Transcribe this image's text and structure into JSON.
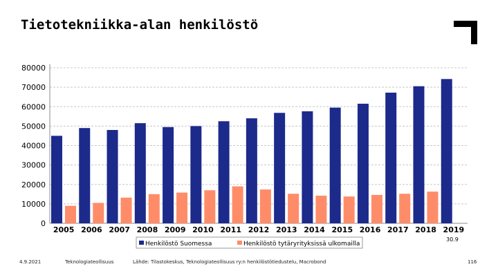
{
  "page": {
    "title": "Tietotekniikka-alan henkilöstö",
    "date": "4.9.2021",
    "organization": "Teknologiateollisuus",
    "source": "Lähde: Tilastokeskus, Teknologiateollisuus ry:n henkilöstötiedustelu, Macrobond",
    "page_number": "116",
    "chart_date_stamp": "30.9"
  },
  "colors": {
    "series_domestic": "#1c2a8c",
    "series_foreign": "#ff8c69",
    "grid": "#c8c8c8",
    "logo": "#000000"
  },
  "chart_data": {
    "type": "bar",
    "categories": [
      "2005",
      "2006",
      "2007",
      "2008",
      "2009",
      "2010",
      "2011",
      "2012",
      "2013",
      "2014",
      "2015",
      "2016",
      "2017",
      "2018",
      "2019"
    ],
    "series": [
      {
        "name": "Henkilöstö Suomessa",
        "values": [
          45000,
          49000,
          48000,
          51500,
          49500,
          50000,
          52500,
          54000,
          56800,
          57600,
          59500,
          61500,
          67200,
          70500,
          74200
        ]
      },
      {
        "name": "Henkilöstö tytäryrityksissä ulkomailla",
        "values": [
          9000,
          10500,
          13200,
          15000,
          15800,
          17000,
          19000,
          17400,
          15200,
          14200,
          13800,
          14600,
          15200,
          16300,
          0
        ]
      }
    ],
    "yticks": [
      "80000",
      "70000",
      "60000",
      "50000",
      "40000",
      "30000",
      "20000",
      "10000",
      "0"
    ],
    "ylim": [
      0,
      80000
    ],
    "grid": true,
    "legend_position": "bottom"
  }
}
